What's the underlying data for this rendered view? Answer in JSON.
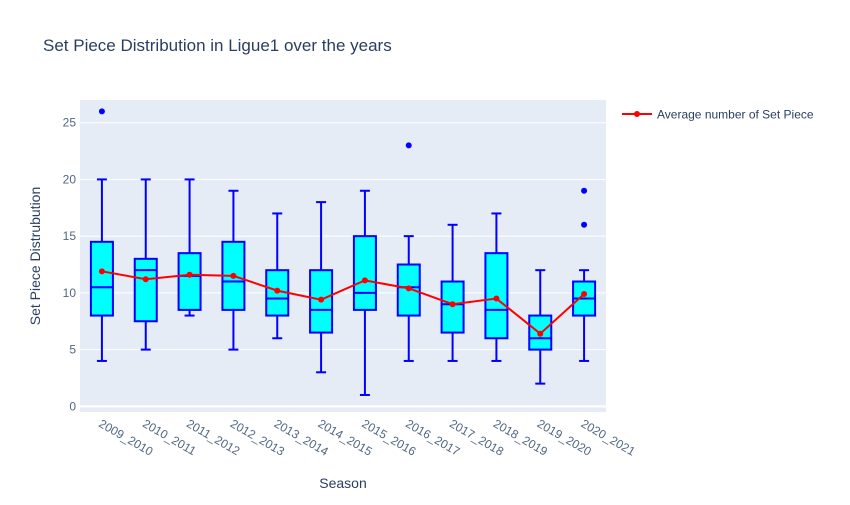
{
  "chart_data": {
    "type": "box",
    "title": "Set Piece Distribution in Ligue1 over the years",
    "xlabel": "Season",
    "ylabel": "Set Piece Distrubution",
    "ylim": [
      -0.5,
      27
    ],
    "yticks": [
      0,
      5,
      10,
      15,
      20,
      25
    ],
    "grid": true,
    "legend_position": "top-right",
    "categories": [
      "2009_2010",
      "2010_2011",
      "2011_2012",
      "2012_2013",
      "2013_2014",
      "2014_2015",
      "2015_2016",
      "2016_2017",
      "2017_2018",
      "2018_2019",
      "2019_2020",
      "2020_2021"
    ],
    "boxes": [
      {
        "category": "2009_2010",
        "min": 4,
        "q1": 8,
        "median": 10.5,
        "q3": 14.5,
        "max": 20,
        "outliers": [
          26
        ]
      },
      {
        "category": "2010_2011",
        "min": 5,
        "q1": 7.5,
        "median": 12,
        "q3": 13,
        "max": 20,
        "outliers": []
      },
      {
        "category": "2011_2012",
        "min": 8,
        "q1": 8.5,
        "median": 11.5,
        "q3": 13.5,
        "max": 20,
        "outliers": []
      },
      {
        "category": "2012_2013",
        "min": 5,
        "q1": 8.5,
        "median": 11,
        "q3": 14.5,
        "max": 19,
        "outliers": []
      },
      {
        "category": "2013_2014",
        "min": 6,
        "q1": 8,
        "median": 9.5,
        "q3": 12,
        "max": 17,
        "outliers": []
      },
      {
        "category": "2014_2015",
        "min": 3,
        "q1": 6.5,
        "median": 8.5,
        "q3": 12,
        "max": 18,
        "outliers": []
      },
      {
        "category": "2015_2016",
        "min": 1,
        "q1": 8.5,
        "median": 10,
        "q3": 15,
        "max": 19,
        "outliers": []
      },
      {
        "category": "2016_2017",
        "min": 4,
        "q1": 8,
        "median": 10.5,
        "q3": 12.5,
        "max": 15,
        "outliers": [
          23
        ]
      },
      {
        "category": "2017_2018",
        "min": 4,
        "q1": 6.5,
        "median": 9,
        "q3": 11,
        "max": 16,
        "outliers": []
      },
      {
        "category": "2018_2019",
        "min": 4,
        "q1": 6,
        "median": 8.5,
        "q3": 13.5,
        "max": 17,
        "outliers": []
      },
      {
        "category": "2019_2020",
        "min": 2,
        "q1": 5,
        "median": 6,
        "q3": 8,
        "max": 12,
        "outliers": []
      },
      {
        "category": "2020_2021",
        "min": 4,
        "q1": 8,
        "median": 9.5,
        "q3": 11,
        "max": 12,
        "outliers": [
          16,
          19
        ]
      }
    ],
    "series": [
      {
        "name": "Average number of Set Piece",
        "type": "line",
        "values": [
          11.9,
          11.2,
          11.6,
          11.5,
          10.2,
          9.4,
          11.1,
          10.4,
          9.0,
          9.5,
          6.4,
          9.9
        ]
      }
    ],
    "colors": {
      "plot_background": "#e5ecf6",
      "box_fill": "#00ffff",
      "box_line": "#0000ff",
      "outlier": "#0000ff",
      "average_line": "#ff0000",
      "grid": "#ffffff",
      "text": "#2a3f5f",
      "tick_text": "#506784"
    }
  }
}
